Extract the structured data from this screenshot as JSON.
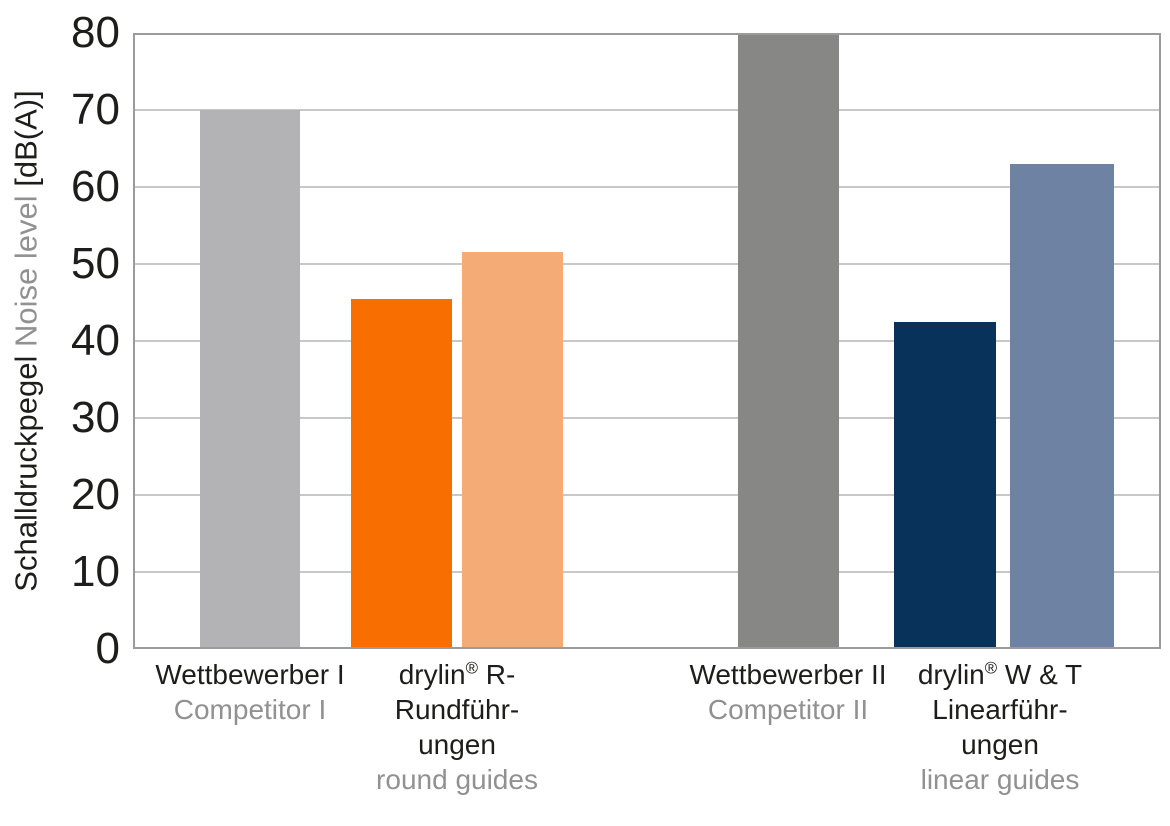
{
  "chart_data": {
    "type": "bar",
    "title": "",
    "ylabel": {
      "de": "Schalldruckpegel",
      "en": "Noise level",
      "unit": "[dB(A)]"
    },
    "ylim": [
      0,
      80
    ],
    "yticks": [
      0,
      10,
      20,
      30,
      40,
      50,
      60,
      70,
      80
    ],
    "grid": true,
    "legend": "none",
    "bars": [
      {
        "id": "competitor-1",
        "label": "Wettbewerber I / Competitor I",
        "value": 70,
        "color": "#b3b2b4",
        "x": 200,
        "width": 100
      },
      {
        "id": "drylin-r-dark",
        "label": "drylin® R-Rundführungen / round guides",
        "value": 45.5,
        "color": "#f86f00",
        "x": 351,
        "width": 101
      },
      {
        "id": "drylin-r-light",
        "label": "drylin® R-Rundführungen / round guides",
        "value": 51.5,
        "color": "#f5ab75",
        "x": 462,
        "width": 101
      },
      {
        "id": "competitor-2",
        "label": "Wettbewerber II / Competitor II",
        "value": 80,
        "color": "#878786",
        "x": 738,
        "width": 101
      },
      {
        "id": "drylin-wt-navy",
        "label": "drylin® W & T Linearführungen / linear guides",
        "value": 42.5,
        "color": "#08325a",
        "x": 894,
        "width": 102
      },
      {
        "id": "drylin-wt-blue",
        "label": "drylin® W & T Linearführungen / linear guides",
        "value": 63,
        "color": "#6e83a3",
        "x": 1010,
        "width": 104
      }
    ],
    "x_groups": [
      {
        "id": "competitor-1",
        "center": 250,
        "lines": [
          {
            "text": "Wettbewerber I",
            "color": "black"
          },
          {
            "text": "Competitor I",
            "color": "gray"
          }
        ]
      },
      {
        "id": "drylin-r",
        "center": 457,
        "lines": [
          {
            "text": "drylin® R-",
            "color": "black"
          },
          {
            "text": "Rundführ-",
            "color": "black"
          },
          {
            "text": "ungen",
            "color": "black"
          },
          {
            "text": "round guides",
            "color": "gray"
          }
        ]
      },
      {
        "id": "competitor-2",
        "center": 788,
        "lines": [
          {
            "text": "Wettbewerber II",
            "color": "black"
          },
          {
            "text": "Competitor II",
            "color": "gray"
          }
        ]
      },
      {
        "id": "drylin-wt",
        "center": 1000,
        "lines": [
          {
            "text": "drylin® W & T",
            "color": "black"
          },
          {
            "text": "Linearführ-",
            "color": "black"
          },
          {
            "text": "ungen",
            "color": "black"
          },
          {
            "text": "linear guides",
            "color": "gray"
          }
        ]
      }
    ]
  },
  "colors": {
    "text_black": "#1d1d1b",
    "text_gray": "#919191",
    "gridline": "#c8c8c8",
    "frame": "#9b9b9b",
    "background": "#ffffff"
  }
}
